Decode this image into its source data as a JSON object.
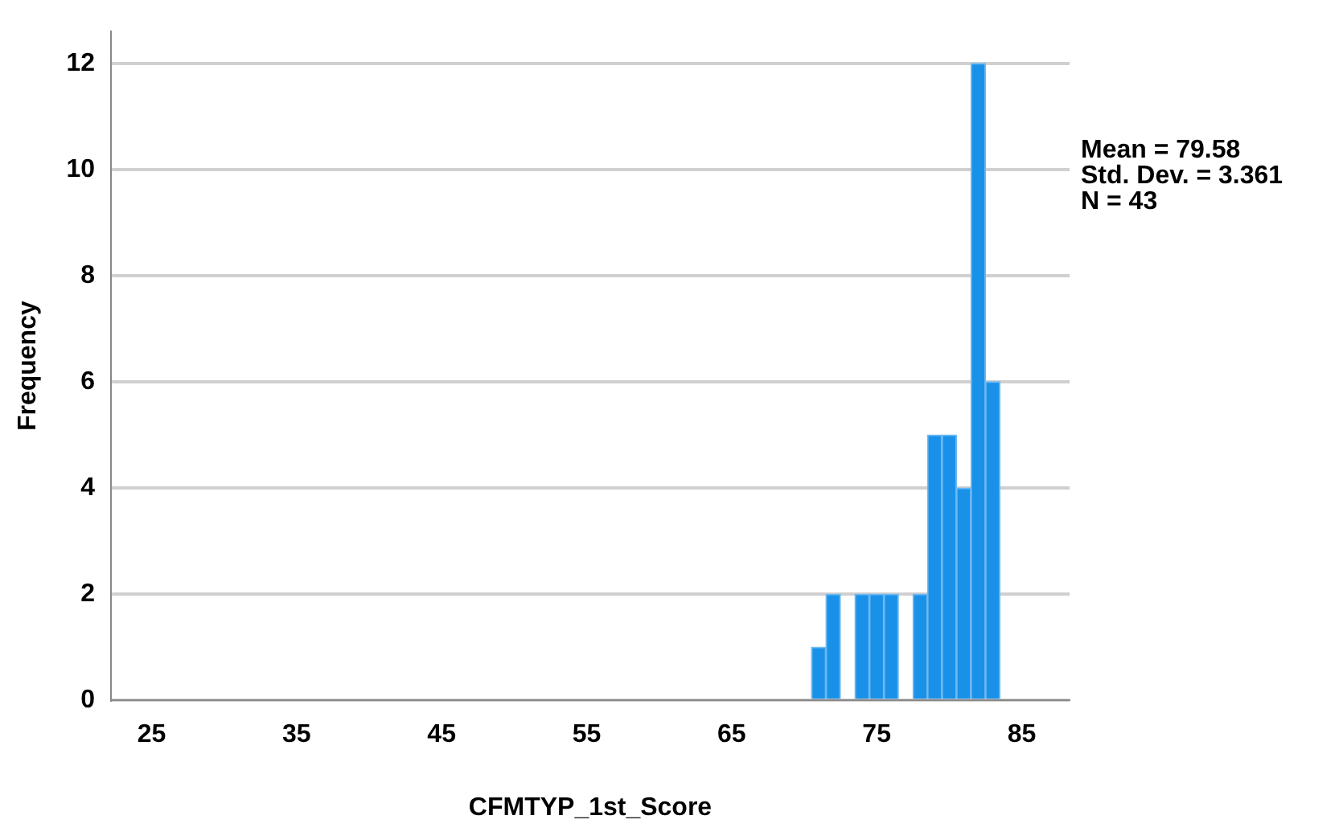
{
  "chart_data": {
    "type": "histogram",
    "xlabel": "CFMTYP_1st_Score",
    "ylabel": "Frequency",
    "bins": [
      70.5,
      71.5,
      72.5,
      73.5,
      74.5,
      75.5,
      76.5,
      77.5,
      78.5,
      79.5,
      80.5,
      81.5,
      82.5,
      83.5
    ],
    "values": [
      1,
      2,
      0,
      2,
      2,
      2,
      0,
      2,
      5,
      5,
      4,
      12,
      6
    ],
    "color": "#1a91e8",
    "xlim": [
      22.2,
      88.3
    ],
    "xticks": [
      25,
      35,
      45,
      55,
      65,
      75,
      85
    ],
    "ylim": [
      0,
      12.6
    ],
    "yticks": [
      0,
      2,
      4,
      6,
      8,
      10,
      12
    ],
    "grid": "y",
    "legend": false,
    "annotations": [
      "Mean = 79.58",
      "Std. Dev. = 3.361",
      "N = 43"
    ]
  }
}
